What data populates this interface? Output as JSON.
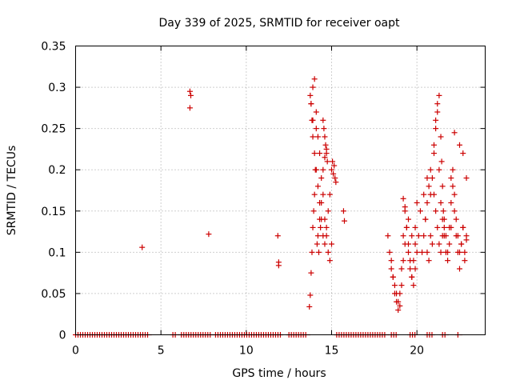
{
  "chart_data": {
    "type": "scatter",
    "title": "Day 339 of 2025, SRMTID for receiver oapt",
    "xlabel": "GPS time / hours",
    "ylabel": "SRMTID / TECUs",
    "xlim": [
      0,
      24
    ],
    "ylim": [
      0,
      0.35
    ],
    "xticks": [
      0,
      5,
      10,
      15,
      20
    ],
    "xtick_labels": [
      "0",
      "5",
      "10",
      "15",
      "20"
    ],
    "yticks": [
      0,
      0.05,
      0.1,
      0.15,
      0.2,
      0.25,
      0.3,
      0.35
    ],
    "ytick_labels": [
      "0",
      "0.05",
      "0.1",
      "0.15",
      "0.2",
      "0.25",
      "0.3",
      "0.35"
    ],
    "grid": true,
    "marker": "+",
    "marker_color": "#cc0000",
    "series": [
      {
        "name": "SRMTID",
        "x": [
          3.9,
          6.7,
          6.75,
          6.7,
          7.8,
          11.85,
          11.9,
          11.9,
          13.7,
          13.75,
          13.8,
          13.85,
          13.9,
          13.95,
          14.0,
          14.05,
          14.1,
          14.15,
          14.2,
          14.25,
          14.3,
          14.35,
          14.4,
          13.8,
          13.9,
          14.0,
          14.1,
          14.2,
          14.3,
          14.4,
          14.5,
          14.6,
          14.7,
          14.8,
          14.9,
          15.0,
          13.9,
          14.0,
          14.1,
          14.2,
          14.3,
          14.4,
          14.5,
          14.6,
          14.7,
          14.8,
          14.9,
          14.5,
          14.55,
          14.6,
          14.65,
          14.7,
          14.75,
          14.5,
          14.6,
          14.7,
          15.0,
          15.05,
          15.1,
          15.15,
          15.2,
          15.25,
          15.7,
          15.75,
          13.75,
          13.8,
          13.85,
          13.9,
          18.3,
          18.4,
          18.5,
          18.6,
          18.7,
          18.8,
          18.9,
          19.0,
          19.1,
          19.2,
          19.3,
          19.4,
          19.5,
          19.6,
          19.7,
          19.8,
          19.9,
          18.5,
          18.6,
          18.7,
          18.8,
          18.9,
          19.0,
          19.1,
          19.2,
          19.3,
          19.4,
          19.5,
          19.6,
          19.7,
          19.8,
          19.9,
          20.0,
          20.1,
          19.2,
          19.3,
          19.5,
          19.7,
          19.9,
          20.0,
          20.2,
          20.4,
          20.5,
          20.6,
          20.7,
          20.8,
          20.9,
          20.3,
          20.4,
          20.5,
          20.6,
          20.7,
          20.8,
          20.9,
          21.0,
          21.1,
          21.2,
          21.3,
          21.4,
          21.5,
          20.6,
          20.8,
          21.0,
          21.1,
          21.2,
          21.3,
          21.4,
          21.5,
          21.6,
          21.7,
          21.8,
          21.9,
          22.0,
          21.0,
          21.1,
          21.2,
          21.3,
          21.4,
          21.45,
          21.5,
          21.55,
          21.6,
          21.6,
          21.7,
          21.8,
          21.9,
          22.0,
          22.1,
          22.2,
          22.3,
          22.4,
          22.5,
          22.6,
          22.7,
          22.8,
          22.9,
          22.0,
          22.1,
          22.2,
          22.3,
          22.4,
          22.5,
          22.6,
          22.7,
          22.8,
          22.9,
          22.2,
          22.5,
          22.7,
          22.9
        ],
        "y": [
          0.106,
          0.295,
          0.29,
          0.275,
          0.122,
          0.12,
          0.088,
          0.084,
          0.034,
          0.048,
          0.075,
          0.1,
          0.13,
          0.15,
          0.17,
          0.2,
          0.25,
          0.11,
          0.12,
          0.1,
          0.14,
          0.13,
          0.16,
          0.28,
          0.3,
          0.31,
          0.27,
          0.24,
          0.22,
          0.19,
          0.17,
          0.14,
          0.12,
          0.1,
          0.09,
          0.11,
          0.26,
          0.22,
          0.2,
          0.18,
          0.16,
          0.14,
          0.12,
          0.11,
          0.13,
          0.15,
          0.17,
          0.26,
          0.25,
          0.24,
          0.23,
          0.22,
          0.21,
          0.2,
          0.215,
          0.225,
          0.2,
          0.21,
          0.195,
          0.205,
          0.19,
          0.185,
          0.15,
          0.138,
          0.29,
          0.28,
          0.26,
          0.24,
          0.12,
          0.1,
          0.08,
          0.07,
          0.06,
          0.05,
          0.04,
          0.035,
          0.06,
          0.09,
          0.11,
          0.13,
          0.1,
          0.08,
          0.07,
          0.09,
          0.11,
          0.09,
          0.07,
          0.05,
          0.04,
          0.03,
          0.05,
          0.08,
          0.12,
          0.15,
          0.13,
          0.11,
          0.09,
          0.07,
          0.06,
          0.08,
          0.1,
          0.12,
          0.165,
          0.155,
          0.14,
          0.12,
          0.13,
          0.16,
          0.15,
          0.17,
          0.14,
          0.1,
          0.09,
          0.12,
          0.11,
          0.1,
          0.12,
          0.14,
          0.16,
          0.18,
          0.2,
          0.19,
          0.17,
          0.15,
          0.13,
          0.11,
          0.1,
          0.12,
          0.19,
          0.17,
          0.22,
          0.25,
          0.27,
          0.2,
          0.16,
          0.14,
          0.12,
          0.1,
          0.09,
          0.11,
          0.13,
          0.23,
          0.26,
          0.28,
          0.29,
          0.24,
          0.21,
          0.18,
          0.15,
          0.13,
          0.14,
          0.12,
          0.1,
          0.13,
          0.16,
          0.18,
          0.15,
          0.12,
          0.1,
          0.08,
          0.11,
          0.13,
          0.09,
          0.12,
          0.19,
          0.2,
          0.17,
          0.14,
          0.12,
          0.1,
          0.11,
          0.13,
          0.1,
          0.115,
          0.245,
          0.23,
          0.22,
          0.19
        ]
      }
    ],
    "zero_band": [
      {
        "x0": 0.0,
        "x1": 4.3
      },
      {
        "x0": 5.7,
        "x1": 5.9
      },
      {
        "x0": 6.2,
        "x1": 7.9
      },
      {
        "x0": 8.2,
        "x1": 12.0
      },
      {
        "x0": 12.5,
        "x1": 13.6
      },
      {
        "x0": 15.3,
        "x1": 18.2
      },
      {
        "x0": 18.5,
        "x1": 18.8
      },
      {
        "x0": 19.6,
        "x1": 19.9
      },
      {
        "x0": 20.6,
        "x1": 20.9
      },
      {
        "x0": 21.5,
        "x1": 21.7
      },
      {
        "x0": 22.4,
        "x1": 22.5
      }
    ]
  }
}
